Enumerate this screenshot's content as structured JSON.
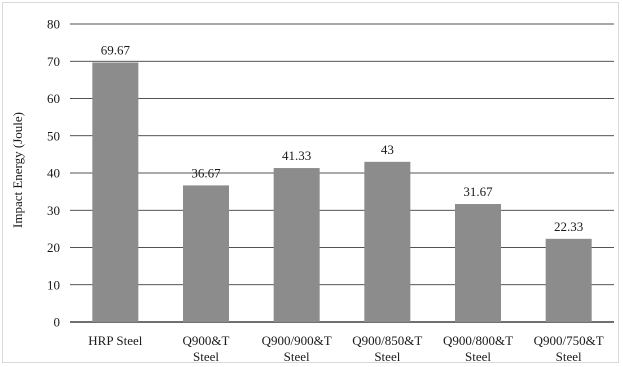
{
  "chart_data": {
    "type": "bar",
    "categories": [
      [
        "HRP Steel"
      ],
      [
        "Q900&T",
        "Steel"
      ],
      [
        "Q900/900&T",
        "Steel"
      ],
      [
        "Q900/850&T",
        "Steel"
      ],
      [
        "Q900/800&T",
        "Steel"
      ],
      [
        "Q900/750&T",
        "Steel"
      ]
    ],
    "values": [
      69.67,
      36.67,
      41.33,
      43,
      31.67,
      22.33
    ],
    "data_labels": [
      "69.67",
      "36.67",
      "41.33",
      "43",
      "31.67",
      "22.33"
    ],
    "title": "",
    "xlabel": "",
    "ylabel": "Impact Energy (Joule)",
    "ylim": [
      0,
      80
    ],
    "yticks": [
      0,
      10,
      20,
      30,
      40,
      50,
      60,
      70,
      80
    ],
    "grid": true,
    "legend": "none",
    "colors": {
      "bar": "#8c8c8c",
      "grid": "#1a1a1a",
      "border": "#d9d9d9"
    }
  }
}
